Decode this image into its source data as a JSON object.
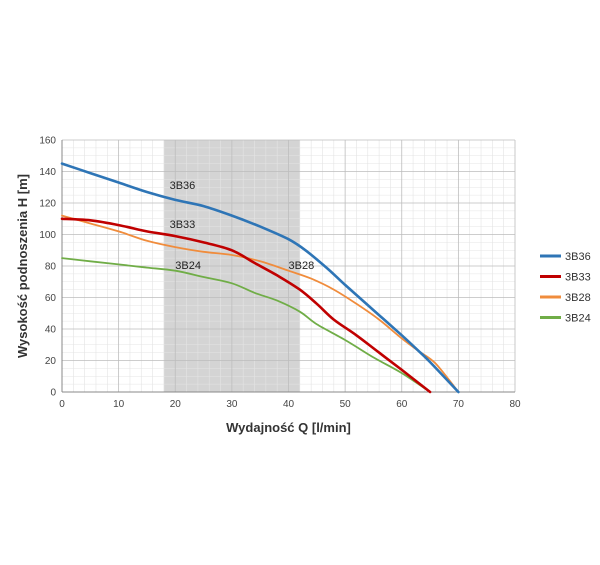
{
  "chart_data": {
    "type": "line",
    "xlabel": "Wydajność Q [l/min]",
    "ylabel": "Wysokość podnoszenia H [m]",
    "xlim": [
      0,
      80
    ],
    "ylim": [
      0,
      160
    ],
    "x_ticks": [
      0,
      10,
      20,
      30,
      40,
      50,
      60,
      70,
      80
    ],
    "y_ticks": [
      0,
      20,
      40,
      60,
      80,
      100,
      120,
      140,
      160
    ],
    "grid": true,
    "legend_position": "right",
    "highlight_range_x": [
      18,
      42
    ],
    "highlight_color": "#d4d4d4",
    "series": [
      {
        "name": "3B36",
        "color": "#2e75b6",
        "points": [
          [
            0,
            145
          ],
          [
            5,
            139
          ],
          [
            10,
            133
          ],
          [
            15,
            127
          ],
          [
            20,
            122
          ],
          [
            25,
            118
          ],
          [
            30,
            112
          ],
          [
            35,
            105
          ],
          [
            40,
            97
          ],
          [
            43,
            90
          ],
          [
            47,
            78
          ],
          [
            50,
            68
          ],
          [
            55,
            52
          ],
          [
            60,
            36
          ],
          [
            63,
            26
          ],
          [
            65,
            19
          ],
          [
            70,
            0
          ]
        ]
      },
      {
        "name": "3B33",
        "color": "#c00000",
        "points": [
          [
            0,
            110
          ],
          [
            5,
            109
          ],
          [
            10,
            106
          ],
          [
            15,
            102
          ],
          [
            20,
            99
          ],
          [
            25,
            95
          ],
          [
            30,
            90
          ],
          [
            34,
            82
          ],
          [
            38,
            74
          ],
          [
            42,
            65
          ],
          [
            45,
            56
          ],
          [
            48,
            46
          ],
          [
            52,
            36
          ],
          [
            56,
            25
          ],
          [
            60,
            14
          ],
          [
            65,
            0
          ]
        ]
      },
      {
        "name": "3B28",
        "color": "#f08c3c",
        "points": [
          [
            0,
            112
          ],
          [
            5,
            107
          ],
          [
            10,
            102
          ],
          [
            15,
            96
          ],
          [
            20,
            92
          ],
          [
            25,
            89
          ],
          [
            30,
            87
          ],
          [
            35,
            83
          ],
          [
            40,
            77
          ],
          [
            44,
            72
          ],
          [
            48,
            65
          ],
          [
            52,
            56
          ],
          [
            56,
            46
          ],
          [
            60,
            34
          ],
          [
            63,
            26
          ],
          [
            66,
            18
          ],
          [
            70,
            0
          ]
        ]
      },
      {
        "name": "3B24",
        "color": "#70ad47",
        "points": [
          [
            0,
            85
          ],
          [
            5,
            83
          ],
          [
            10,
            81
          ],
          [
            15,
            79
          ],
          [
            20,
            77
          ],
          [
            25,
            73
          ],
          [
            30,
            69
          ],
          [
            34,
            63
          ],
          [
            38,
            58
          ],
          [
            42,
            51
          ],
          [
            45,
            43
          ],
          [
            50,
            33
          ],
          [
            55,
            22
          ],
          [
            60,
            12
          ],
          [
            65,
            0
          ]
        ]
      }
    ],
    "inline_labels": [
      {
        "text": "3B36",
        "x": 19,
        "y": 129
      },
      {
        "text": "3B33",
        "x": 19,
        "y": 104
      },
      {
        "text": "3B24",
        "x": 20,
        "y": 78
      },
      {
        "text": "3B28",
        "x": 40,
        "y": 78
      }
    ]
  }
}
